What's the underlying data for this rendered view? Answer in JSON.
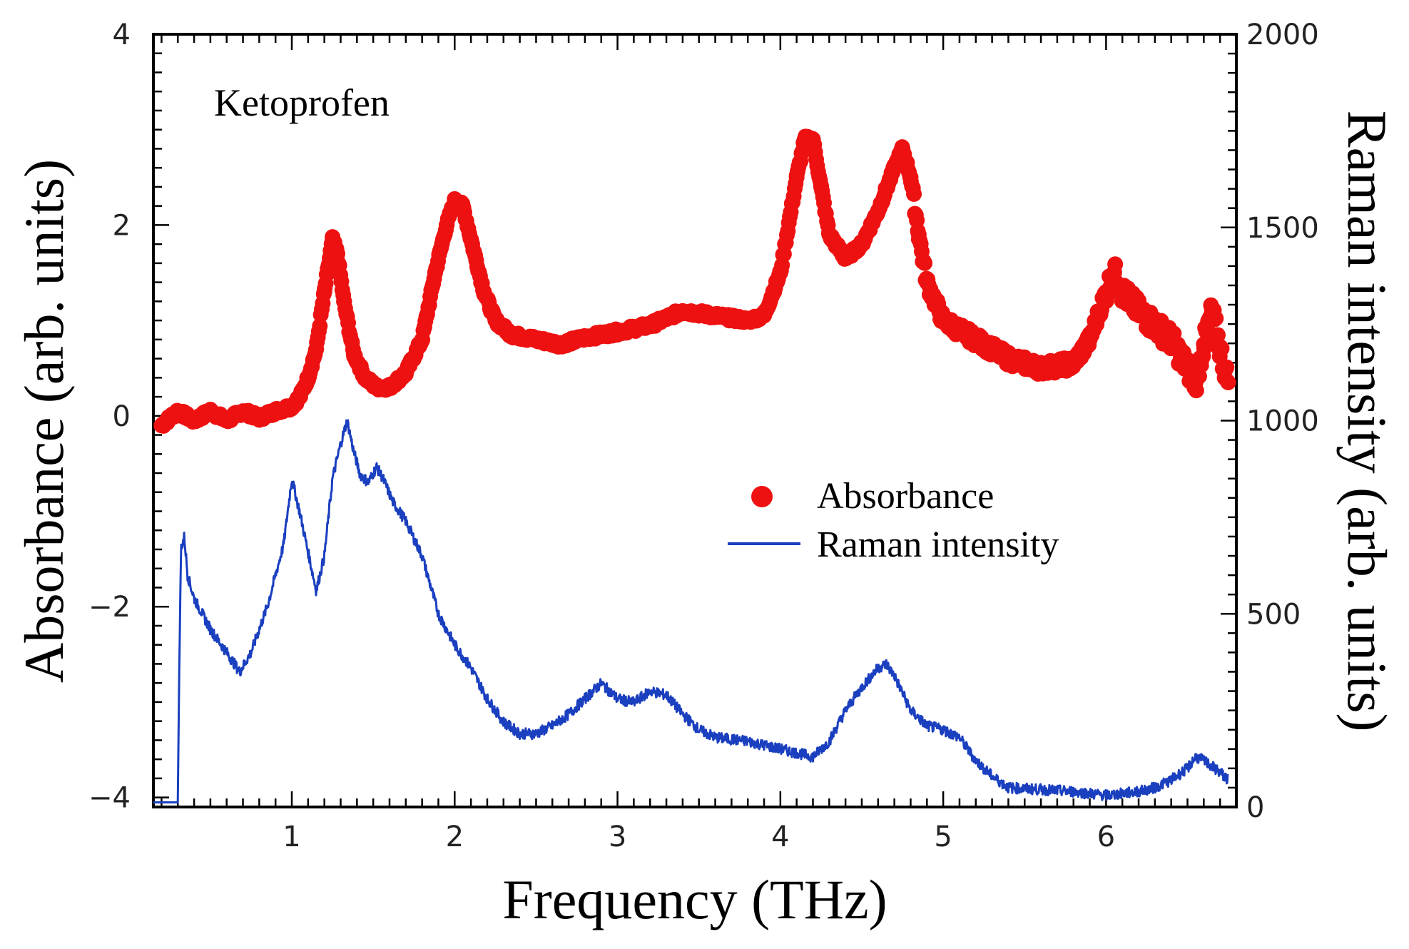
{
  "chart_data": {
    "type": "line",
    "title": "",
    "annotation": "Ketoprofen",
    "xlabel": "Frequency (THz)",
    "ylabel_left": "Absorbance (arb. units)",
    "ylabel_right": "Raman intensity (arb. units)",
    "xlim": [
      0.15,
      6.8
    ],
    "ylim_left": [
      -4.1,
      4.0
    ],
    "ylim_right": [
      0,
      2000
    ],
    "xticks": [
      "1",
      "2",
      "3",
      "4",
      "5",
      "6"
    ],
    "xtick_values": [
      1,
      2,
      3,
      4,
      5,
      6
    ],
    "yticks_left": [
      "4",
      "2",
      "0",
      "−2",
      "−4"
    ],
    "ytick_values_left": [
      4,
      2,
      0,
      -2,
      -4
    ],
    "yticks_right": [
      "2000",
      "1500",
      "1000",
      "500",
      "0"
    ],
    "ytick_values_right": [
      2000,
      1500,
      1000,
      500,
      0
    ],
    "legend": {
      "position": "center-right",
      "entries": [
        "Absorbance",
        "Raman intensity"
      ]
    },
    "series": [
      {
        "name": "Absorbance",
        "axis": "left",
        "style": "markers",
        "color": "#ee1111",
        "x": [
          0.2,
          0.3,
          0.4,
          0.5,
          0.6,
          0.7,
          0.8,
          0.9,
          1.0,
          1.05,
          1.1,
          1.15,
          1.2,
          1.25,
          1.28,
          1.32,
          1.38,
          1.45,
          1.52,
          1.6,
          1.7,
          1.8,
          1.88,
          1.95,
          2.0,
          2.05,
          2.1,
          2.18,
          2.25,
          2.35,
          2.5,
          2.65,
          2.8,
          3.0,
          3.2,
          3.4,
          3.6,
          3.8,
          3.9,
          4.0,
          4.1,
          4.15,
          4.2,
          4.25,
          4.3,
          4.4,
          4.5,
          4.6,
          4.7,
          4.75,
          4.8,
          4.85,
          4.9,
          5.0,
          5.2,
          5.4,
          5.6,
          5.8,
          5.9,
          6.0,
          6.05,
          6.1,
          6.2,
          6.3,
          6.4,
          6.5,
          6.55,
          6.6,
          6.65,
          6.7,
          6.75
        ],
        "y": [
          -0.1,
          0.05,
          -0.05,
          0.05,
          -0.05,
          0.05,
          -0.02,
          0.05,
          0.1,
          0.2,
          0.4,
          0.7,
          1.3,
          1.85,
          1.7,
          1.2,
          0.65,
          0.4,
          0.3,
          0.3,
          0.45,
          0.8,
          1.5,
          2.0,
          2.25,
          2.2,
          1.85,
          1.3,
          1.0,
          0.85,
          0.8,
          0.75,
          0.82,
          0.88,
          0.95,
          1.1,
          1.05,
          1.0,
          1.05,
          1.5,
          2.5,
          2.9,
          2.9,
          2.4,
          1.9,
          1.65,
          1.8,
          2.15,
          2.6,
          2.8,
          2.5,
          1.9,
          1.4,
          1.0,
          0.8,
          0.6,
          0.5,
          0.55,
          0.8,
          1.3,
          1.5,
          1.3,
          1.1,
          0.95,
          0.8,
          0.5,
          0.35,
          0.75,
          1.1,
          0.7,
          0.35
        ]
      },
      {
        "name": "Raman intensity",
        "axis": "right",
        "style": "line",
        "color": "#1a3fbf",
        "x": [
          0.15,
          0.3,
          0.31,
          0.32,
          0.34,
          0.36,
          0.4,
          0.5,
          0.6,
          0.68,
          0.75,
          0.85,
          0.95,
          1.0,
          1.05,
          1.1,
          1.15,
          1.2,
          1.25,
          1.3,
          1.34,
          1.38,
          1.42,
          1.47,
          1.52,
          1.56,
          1.62,
          1.7,
          1.8,
          1.9,
          2.0,
          2.1,
          2.2,
          2.3,
          2.4,
          2.5,
          2.6,
          2.7,
          2.8,
          2.9,
          3.0,
          3.1,
          3.2,
          3.3,
          3.4,
          3.5,
          3.6,
          3.8,
          4.0,
          4.1,
          4.2,
          4.3,
          4.4,
          4.5,
          4.6,
          4.65,
          4.7,
          4.8,
          4.9,
          5.0,
          5.1,
          5.2,
          5.3,
          5.4,
          5.6,
          5.8,
          6.0,
          6.2,
          6.3,
          6.4,
          6.5,
          6.55,
          6.6,
          6.7,
          6.75
        ],
        "y": [
          12,
          12,
          400,
          670,
          700,
          600,
          540,
          460,
          400,
          350,
          400,
          520,
          680,
          850,
          760,
          660,
          560,
          650,
          850,
          940,
          1000,
          920,
          860,
          840,
          880,
          850,
          790,
          740,
          650,
          500,
          420,
          360,
          280,
          220,
          190,
          190,
          210,
          240,
          280,
          320,
          280,
          270,
          300,
          290,
          240,
          200,
          180,
          170,
          150,
          140,
          130,
          170,
          250,
          310,
          360,
          370,
          340,
          250,
          210,
          200,
          180,
          120,
          80,
          50,
          45,
          40,
          30,
          40,
          50,
          70,
          100,
          130,
          120,
          90,
          70
        ]
      }
    ]
  }
}
